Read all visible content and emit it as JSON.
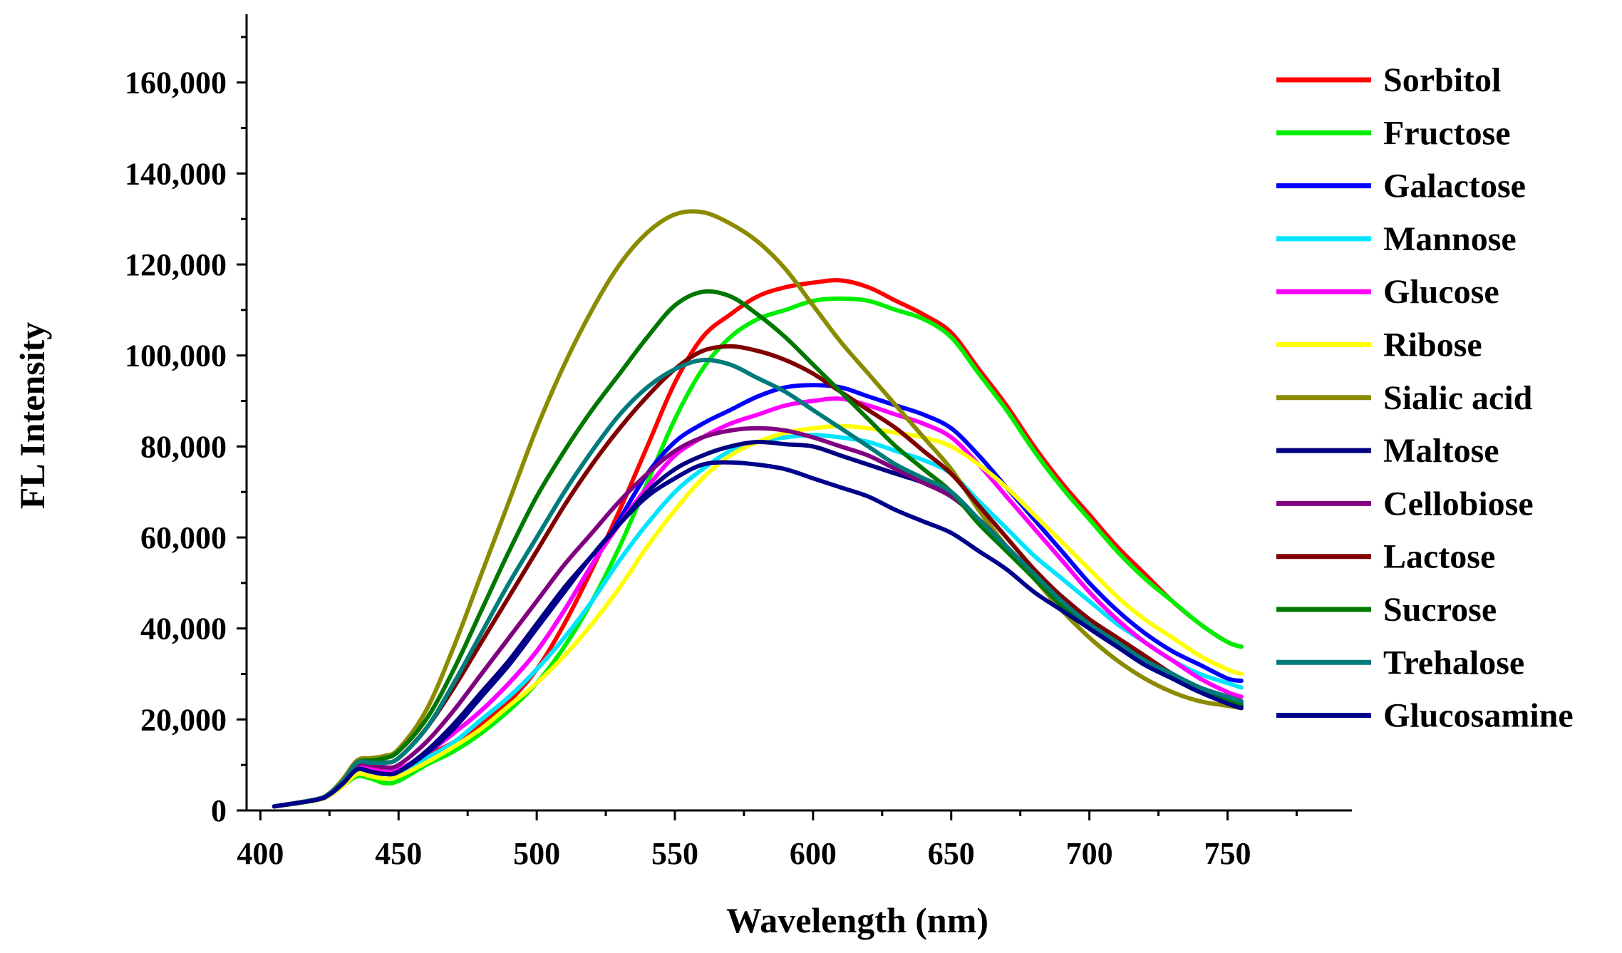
{
  "chart_data": {
    "type": "line",
    "title": "",
    "xlabel": "Wavelength (nm)",
    "ylabel": "FL Intensity",
    "xlim": [
      395,
      795
    ],
    "ylim": [
      0,
      175000
    ],
    "xticks": [
      400,
      450,
      500,
      550,
      600,
      650,
      700,
      750
    ],
    "xtick_labels": [
      "400",
      "450",
      "500",
      "550",
      "600",
      "650",
      "700",
      "750"
    ],
    "yticks": [
      0,
      20000,
      40000,
      60000,
      80000,
      100000,
      120000,
      140000,
      160000
    ],
    "ytick_labels": [
      "0",
      "20,000",
      "40,000",
      "60,000",
      "80,000",
      "100,000",
      "120,000",
      "140,000",
      "160,000"
    ],
    "grid": false,
    "legend_position": "right",
    "x": [
      405,
      420,
      425,
      430,
      435,
      440,
      445,
      450,
      460,
      470,
      480,
      490,
      500,
      510,
      520,
      530,
      540,
      550,
      560,
      570,
      580,
      590,
      600,
      610,
      620,
      630,
      640,
      650,
      660,
      670,
      680,
      690,
      700,
      710,
      720,
      730,
      740,
      750,
      755
    ],
    "series": [
      {
        "name": "Sorbitol",
        "color": "#ff0000",
        "values": [
          900,
          2300,
          3500,
          6000,
          9500,
          9500,
          8500,
          9000,
          12000,
          15000,
          19000,
          24000,
          31000,
          41000,
          53000,
          66000,
          80000,
          94000,
          104000,
          109000,
          113000,
          115000,
          116000,
          116500,
          115000,
          112000,
          109000,
          105000,
          97000,
          89000,
          80000,
          72000,
          65000,
          58000,
          52000,
          46000,
          41000,
          37000,
          36000
        ]
      },
      {
        "name": "Fructose",
        "color": "#00ee00",
        "values": [
          900,
          2200,
          3400,
          5500,
          7500,
          7000,
          6000,
          6500,
          10000,
          13000,
          17000,
          22000,
          28000,
          36000,
          46000,
          58000,
          72000,
          86000,
          97000,
          104000,
          108000,
          110000,
          112000,
          112500,
          112000,
          110000,
          108000,
          104000,
          96000,
          88000,
          79000,
          71000,
          64000,
          57000,
          51000,
          46000,
          41000,
          37000,
          36000
        ]
      },
      {
        "name": "Galactose",
        "color": "#0000ff",
        "values": [
          900,
          2300,
          3500,
          6000,
          9500,
          9000,
          8500,
          9000,
          12500,
          17000,
          22000,
          28000,
          35000,
          44000,
          54000,
          64000,
          74000,
          81000,
          85000,
          88000,
          91000,
          93000,
          93500,
          93000,
          91000,
          89000,
          87000,
          84000,
          78000,
          71000,
          64000,
          57000,
          50000,
          44000,
          39000,
          35000,
          32000,
          29000,
          28500
        ]
      },
      {
        "name": "Mannose",
        "color": "#00e5ff",
        "values": [
          900,
          2300,
          3500,
          6000,
          9000,
          8500,
          8000,
          8500,
          11500,
          15000,
          20000,
          25000,
          31000,
          38000,
          46000,
          55000,
          63000,
          70000,
          75000,
          79000,
          81000,
          82000,
          82500,
          82000,
          81000,
          79000,
          77000,
          74000,
          68000,
          62000,
          56000,
          51000,
          46000,
          41000,
          37000,
          33000,
          30000,
          28000,
          27000
        ]
      },
      {
        "name": "Glucose",
        "color": "#ff00ff",
        "values": [
          900,
          2300,
          3500,
          6000,
          9500,
          9000,
          8500,
          9000,
          12500,
          17000,
          22000,
          28000,
          35000,
          44000,
          54000,
          63000,
          71000,
          78000,
          82000,
          85000,
          87000,
          89000,
          90000,
          90500,
          89000,
          87000,
          85000,
          82000,
          76000,
          69000,
          62000,
          55000,
          48000,
          42000,
          37000,
          33000,
          29000,
          26000,
          25000
        ]
      },
      {
        "name": "Ribose",
        "color": "#ffff00",
        "values": [
          900,
          2200,
          3300,
          5500,
          8000,
          7500,
          7000,
          7500,
          10500,
          14000,
          18000,
          23000,
          28000,
          34000,
          41000,
          49000,
          58000,
          66000,
          73000,
          78000,
          81000,
          83000,
          84000,
          84500,
          84000,
          83000,
          82000,
          80000,
          76000,
          71000,
          65000,
          59000,
          53000,
          47000,
          42000,
          38000,
          34000,
          31000,
          30000
        ]
      },
      {
        "name": "Sialic acid",
        "color": "#8b8b00",
        "values": [
          900,
          2400,
          3800,
          7000,
          11000,
          11500,
          12000,
          13500,
          22000,
          36000,
          52000,
          68000,
          84000,
          98000,
          110000,
          120000,
          127000,
          131000,
          131500,
          129000,
          125000,
          119000,
          111000,
          103000,
          96000,
          89000,
          82000,
          75000,
          66000,
          58000,
          51000,
          44000,
          38000,
          33000,
          29000,
          26000,
          24000,
          23000,
          22500
        ]
      },
      {
        "name": "Maltose",
        "color": "#000080",
        "values": [
          900,
          2300,
          3500,
          6000,
          9000,
          8500,
          8000,
          8500,
          13000,
          19000,
          26000,
          33000,
          41000,
          49000,
          56000,
          63000,
          70000,
          75000,
          78000,
          80000,
          81000,
          80500,
          80000,
          78000,
          76000,
          74000,
          72000,
          69000,
          64000,
          58000,
          52000,
          47000,
          42000,
          38000,
          34000,
          30000,
          27000,
          24000,
          23000
        ]
      },
      {
        "name": "Cellobiose",
        "color": "#800080",
        "values": [
          900,
          2400,
          3600,
          6500,
          10000,
          10000,
          9500,
          10000,
          15000,
          22000,
          30000,
          38000,
          46000,
          54000,
          61000,
          68000,
          74000,
          79000,
          82000,
          83500,
          84000,
          83500,
          82000,
          80000,
          78000,
          75000,
          72000,
          69000,
          64000,
          58000,
          52000,
          47000,
          42000,
          38000,
          34000,
          30000,
          27000,
          25000,
          24000
        ]
      },
      {
        "name": "Lactose",
        "color": "#800000",
        "values": [
          900,
          2400,
          3700,
          6500,
          10500,
          10500,
          10500,
          11500,
          18000,
          27000,
          37000,
          47000,
          57000,
          67000,
          76000,
          84000,
          91000,
          97000,
          101000,
          102000,
          101000,
          99000,
          96000,
          92000,
          88000,
          84000,
          79000,
          74000,
          67000,
          60000,
          53000,
          47000,
          42000,
          38000,
          34000,
          30000,
          27000,
          25000,
          24000
        ]
      },
      {
        "name": "Sucrose",
        "color": "#007800",
        "values": [
          900,
          2400,
          3700,
          6500,
          10500,
          11000,
          11500,
          13000,
          20000,
          31000,
          44000,
          57000,
          69000,
          79000,
          88000,
          96000,
          104000,
          111000,
          114000,
          113000,
          109000,
          104000,
          98000,
          92000,
          86000,
          80000,
          75000,
          70000,
          63000,
          57000,
          51000,
          45000,
          40000,
          36000,
          32000,
          29000,
          26000,
          24000,
          23500
        ]
      },
      {
        "name": "Trehalose",
        "color": "#007b7b",
        "values": [
          900,
          2400,
          3700,
          6500,
          10500,
          10500,
          10500,
          11500,
          18000,
          28000,
          39000,
          50000,
          60000,
          70000,
          79000,
          87000,
          93000,
          97000,
          99000,
          98000,
          95000,
          92000,
          88000,
          84000,
          80000,
          76000,
          73000,
          70000,
          64000,
          58000,
          52000,
          46000,
          41000,
          37000,
          33000,
          30000,
          27000,
          25000,
          24000
        ]
      },
      {
        "name": "Glucosamine",
        "color": "#00008b",
        "values": [
          900,
          2300,
          3500,
          6000,
          9000,
          8500,
          8000,
          8500,
          12500,
          18000,
          25000,
          32000,
          40000,
          48000,
          56000,
          63000,
          69000,
          73000,
          76000,
          76500,
          76000,
          75000,
          73000,
          71000,
          69000,
          66000,
          63500,
          61000,
          57000,
          53000,
          48000,
          44000,
          40000,
          36000,
          32000,
          29000,
          26000,
          23500,
          22500
        ]
      }
    ]
  }
}
